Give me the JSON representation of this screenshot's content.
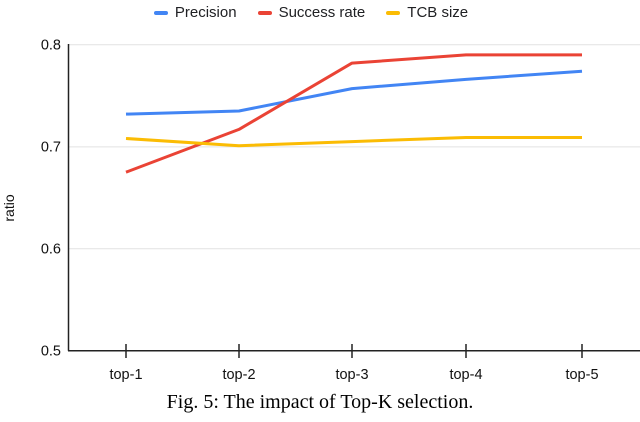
{
  "caption": "Fig. 5: The impact of Top-K selection.",
  "chart_data": {
    "type": "line",
    "categories": [
      "top-1",
      "top-2",
      "top-3",
      "top-4",
      "top-5"
    ],
    "series": [
      {
        "name": "Precision",
        "color": "#4285F4",
        "values": [
          0.732,
          0.735,
          0.757,
          0.766,
          0.774
        ]
      },
      {
        "name": "Success rate",
        "color": "#EA4335",
        "values": [
          0.675,
          0.717,
          0.782,
          0.79,
          0.79
        ]
      },
      {
        "name": "TCB size",
        "color": "#FBBC04",
        "values": [
          0.708,
          0.701,
          0.705,
          0.709,
          0.709
        ]
      }
    ],
    "xlabel": "",
    "ylabel": "ratio",
    "ylim": [
      0.5,
      0.8
    ],
    "yticks": [
      0.8,
      0.7,
      0.6,
      0.5
    ],
    "ytick_labels": [
      "0.8",
      "0.7",
      "0.6",
      "0.5"
    ],
    "grid": true,
    "legend_position": "top"
  }
}
